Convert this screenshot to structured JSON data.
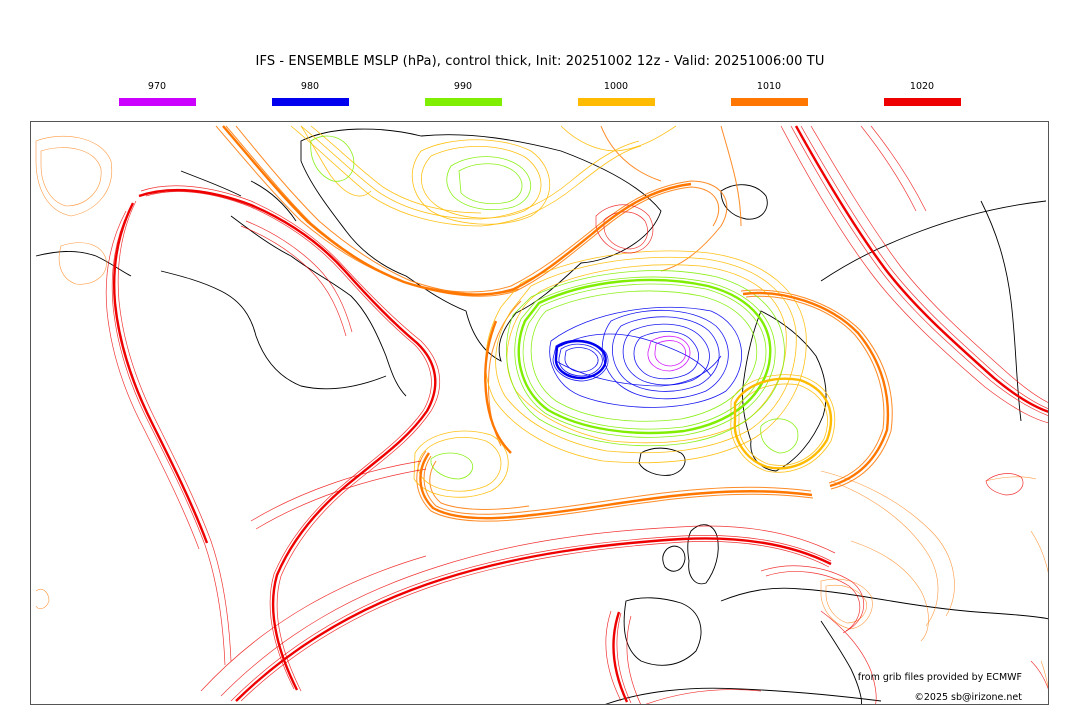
{
  "title": "IFS - ENSEMBLE MSLP (hPa), control thick, Init: 20251002 12z - Valid: 20251006:00 TU",
  "legend": [
    {
      "label": "970",
      "color": "#cc00ff"
    },
    {
      "label": "980",
      "color": "#0000ee"
    },
    {
      "label": "990",
      "color": "#80ee00"
    },
    {
      "label": "1000",
      "color": "#ffbb00"
    },
    {
      "label": "1010",
      "color": "#ff7700"
    },
    {
      "label": "1020",
      "color": "#ee0000"
    }
  ],
  "credits": {
    "source": "from grib files provided by ECMWF",
    "copyright": "©2025 sb@irizone.net"
  }
}
